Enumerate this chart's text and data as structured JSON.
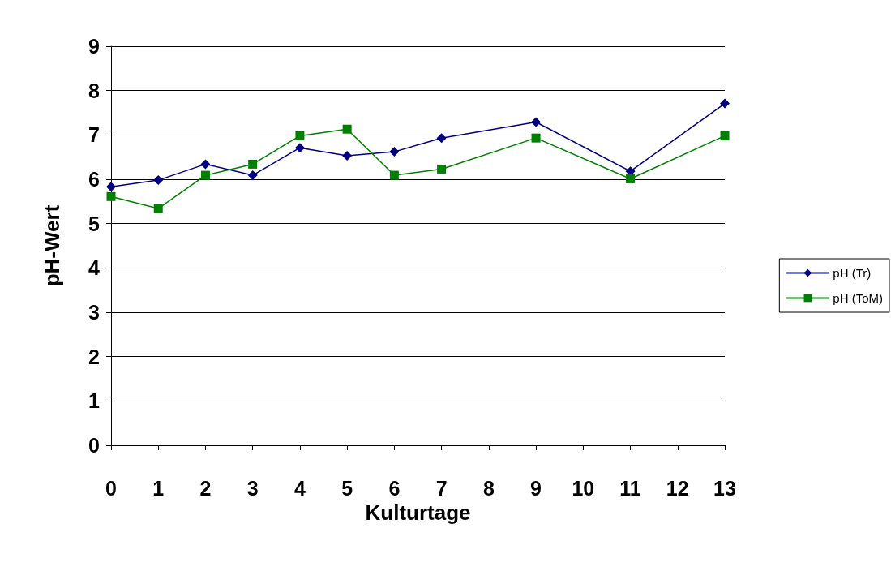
{
  "chart_data": {
    "type": "line",
    "xlabel": "Kulturtage",
    "ylabel": "pH-Wert",
    "x": [
      0,
      1,
      2,
      3,
      4,
      5,
      6,
      7,
      9,
      11,
      13
    ],
    "series": [
      {
        "name": "pH (Tr)",
        "color": "#000080",
        "marker": "diamond",
        "values": [
          5.83,
          5.98,
          6.34,
          6.09,
          6.71,
          6.53,
          6.62,
          6.93,
          7.29,
          6.18,
          7.71
        ]
      },
      {
        "name": "pH (ToM)",
        "color": "#008000",
        "marker": "square",
        "values": [
          5.61,
          5.34,
          6.09,
          6.34,
          6.98,
          7.13,
          6.09,
          6.23,
          6.93,
          6.01,
          6.98
        ]
      }
    ],
    "xlim": [
      0,
      13
    ],
    "xticks": [
      0,
      1,
      2,
      3,
      4,
      5,
      6,
      7,
      8,
      9,
      10,
      11,
      12,
      13
    ],
    "ylim": [
      0,
      9
    ],
    "yticks": [
      0,
      1,
      2,
      3,
      4,
      5,
      6,
      7,
      8,
      9
    ],
    "grid": "y",
    "legend": "right",
    "line_style": "solid"
  }
}
